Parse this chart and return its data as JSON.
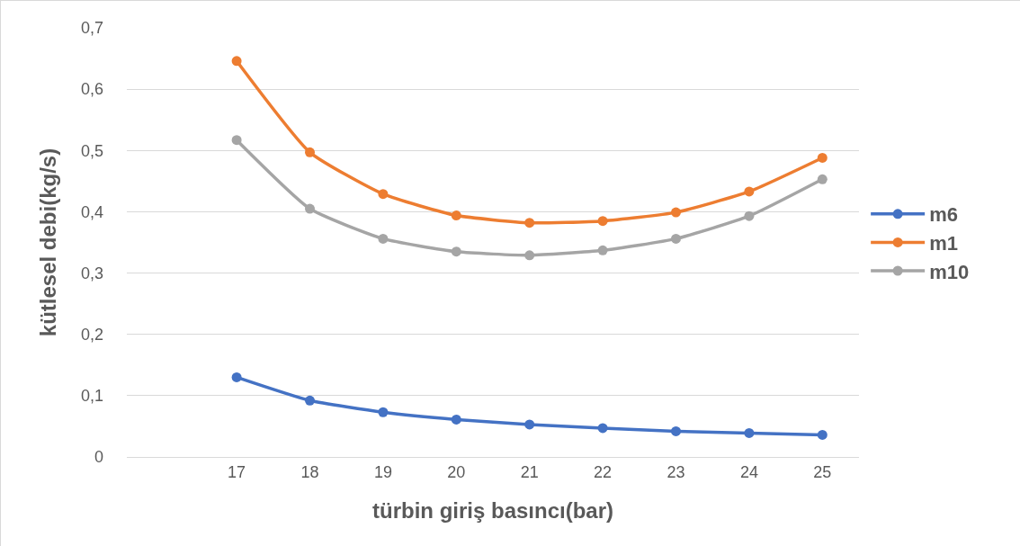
{
  "chart_data": {
    "type": "line",
    "xlabel": "türbin giriş basıncı(bar)",
    "ylabel": "kütlesel debi(kg/s)",
    "categories": [
      null,
      "17",
      "18",
      "19",
      "20",
      "21",
      "22",
      "23",
      "24",
      "25"
    ],
    "series": [
      {
        "name": "m6",
        "color": "#4472c4",
        "values": [
          null,
          0.13,
          0.092,
          0.073,
          0.061,
          0.053,
          0.047,
          0.042,
          0.039,
          0.036
        ]
      },
      {
        "name": "m1",
        "color": "#ed7d31",
        "values": [
          null,
          0.646,
          0.497,
          0.429,
          0.394,
          0.382,
          0.385,
          0.399,
          0.433,
          0.488
        ]
      },
      {
        "name": "m10",
        "color": "#a5a5a5",
        "values": [
          null,
          0.517,
          0.405,
          0.356,
          0.335,
          0.329,
          0.337,
          0.356,
          0.393,
          0.453
        ]
      }
    ],
    "ylim": [
      0,
      0.7
    ],
    "yticks": [
      {
        "value": 0,
        "label": "0"
      },
      {
        "value": 0.1,
        "label": "0,1"
      },
      {
        "value": 0.2,
        "label": "0,2"
      },
      {
        "value": 0.3,
        "label": "0,3"
      },
      {
        "value": 0.4,
        "label": "0,4"
      },
      {
        "value": 0.5,
        "label": "0,5"
      },
      {
        "value": 0.6,
        "label": "0,6"
      },
      {
        "value": 0.7,
        "label": "0,7"
      }
    ],
    "grid": "y",
    "legend": "right",
    "marker": "circle",
    "line_style": "solid"
  }
}
